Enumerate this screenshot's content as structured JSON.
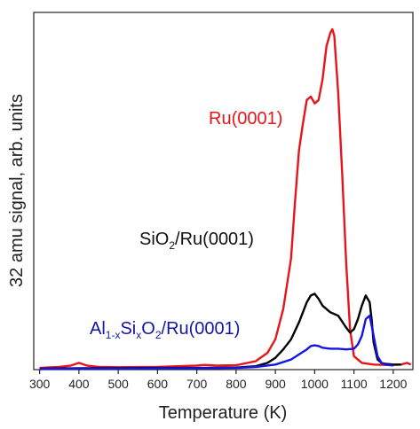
{
  "chart_data": {
    "type": "line",
    "title": "",
    "xlabel": "Temperature (K)",
    "ylabel": "32 amu signal, arb. units",
    "xlim": [
      285,
      1250
    ],
    "ylim": [
      0,
      1.06
    ],
    "x_ticks": [
      300,
      400,
      500,
      600,
      700,
      800,
      900,
      1000,
      1100,
      1200
    ],
    "y_tick_labels": false,
    "grid": false,
    "legend": "inline-labels",
    "series": [
      {
        "name": "Ru(0001)",
        "color": "#e8141b",
        "label_parts": {
          "main": "Ru(0001)"
        },
        "x": [
          300,
          350,
          380,
          400,
          420,
          450,
          500,
          600,
          700,
          720,
          750,
          800,
          850,
          880,
          900,
          920,
          940,
          950,
          960,
          970,
          980,
          990,
          1000,
          1010,
          1020,
          1030,
          1040,
          1045,
          1050,
          1060,
          1070,
          1080,
          1090,
          1100,
          1120,
          1150,
          1180,
          1200,
          1220,
          1235,
          1245
        ],
        "y": [
          0.005,
          0.008,
          0.012,
          0.02,
          0.012,
          0.008,
          0.007,
          0.008,
          0.012,
          0.014,
          0.012,
          0.013,
          0.025,
          0.05,
          0.09,
          0.18,
          0.33,
          0.5,
          0.65,
          0.73,
          0.8,
          0.81,
          0.79,
          0.8,
          0.86,
          0.96,
          1.0,
          1.01,
          0.99,
          0.82,
          0.58,
          0.32,
          0.12,
          0.04,
          0.02,
          0.015,
          0.014,
          0.014,
          0.015,
          0.02,
          0.015
        ]
      },
      {
        "name": "SiO2/Ru(0001)",
        "color": "#000000",
        "label_parts": {
          "main": "SiO",
          "sub": "2",
          "rest": "/Ru(0001)"
        },
        "x": [
          300,
          400,
          500,
          600,
          700,
          800,
          850,
          880,
          900,
          920,
          940,
          960,
          980,
          990,
          1000,
          1010,
          1020,
          1040,
          1060,
          1080,
          1090,
          1100,
          1110,
          1120,
          1130,
          1140,
          1145,
          1150,
          1160,
          1170,
          1180,
          1200,
          1220
        ],
        "y": [
          0.003,
          0.004,
          0.004,
          0.005,
          0.005,
          0.006,
          0.01,
          0.02,
          0.035,
          0.06,
          0.09,
          0.14,
          0.2,
          0.22,
          0.225,
          0.21,
          0.19,
          0.17,
          0.16,
          0.125,
          0.11,
          0.12,
          0.15,
          0.19,
          0.22,
          0.2,
          0.15,
          0.08,
          0.03,
          0.02,
          0.017,
          0.015,
          0.015
        ]
      },
      {
        "name": "Al1-xSixO2/Ru(0001)",
        "color": "#1414e6",
        "label_parts": {
          "main": "Al",
          "sub": "1-x",
          "mid": "Si",
          "sub2": "x",
          "mid2": "O",
          "sub3": "2",
          "rest": "/Ru(0001)"
        },
        "x": [
          300,
          400,
          500,
          600,
          700,
          800,
          850,
          900,
          940,
          960,
          980,
          990,
          1000,
          1010,
          1020,
          1040,
          1060,
          1080,
          1100,
          1110,
          1120,
          1130,
          1140,
          1150,
          1160,
          1170,
          1180,
          1200
        ],
        "y": [
          0.002,
          0.003,
          0.003,
          0.004,
          0.004,
          0.005,
          0.008,
          0.015,
          0.03,
          0.045,
          0.06,
          0.07,
          0.072,
          0.07,
          0.065,
          0.062,
          0.062,
          0.06,
          0.062,
          0.075,
          0.1,
          0.15,
          0.16,
          0.1,
          0.04,
          0.02,
          0.015,
          0.012
        ]
      }
    ]
  }
}
